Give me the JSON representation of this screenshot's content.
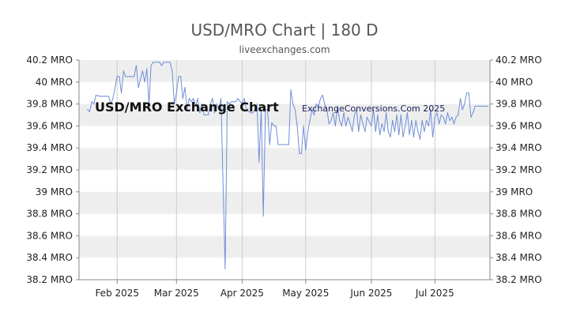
{
  "header": {
    "title": "USD/MRO Chart | 180 D",
    "subtitle": "liveexchanges.com"
  },
  "watermarks": {
    "left": "USD/MRO Exchange Chart",
    "right": "ExchangeConversions.Com 2025"
  },
  "colors": {
    "line": "#6f8fd8",
    "band": "#eeeeee",
    "grid": "#cccccc",
    "axis": "#888888"
  },
  "chart_data": {
    "type": "line",
    "title": "USD/MRO Chart | 180 D",
    "xlabel": "",
    "ylabel": "",
    "ylim": [
      38.2,
      40.2
    ],
    "y_ticks": [
      {
        "value": 40.2,
        "label": "40.2 MRO"
      },
      {
        "value": 40.0,
        "label": "40 MRO"
      },
      {
        "value": 39.8,
        "label": "39.8 MRO"
      },
      {
        "value": 39.6,
        "label": "39.6 MRO"
      },
      {
        "value": 39.4,
        "label": "39.4 MRO"
      },
      {
        "value": 39.2,
        "label": "39.2 MRO"
      },
      {
        "value": 39.0,
        "label": "39 MRO"
      },
      {
        "value": 38.8,
        "label": "38.8 MRO"
      },
      {
        "value": 38.6,
        "label": "38.6 MRO"
      },
      {
        "value": 38.4,
        "label": "38.4 MRO"
      },
      {
        "value": 38.2,
        "label": "38.2 MRO"
      }
    ],
    "x_range": [
      "2025-01-14",
      "2025-07-27"
    ],
    "x_ticks": [
      {
        "date": "2025-02-01",
        "label": "Feb 2025"
      },
      {
        "date": "2025-03-01",
        "label": "Mar 2025"
      },
      {
        "date": "2025-04-01",
        "label": "Apr 2025"
      },
      {
        "date": "2025-05-01",
        "label": "May 2025"
      },
      {
        "date": "2025-06-01",
        "label": "Jun 2025"
      },
      {
        "date": "2025-07-01",
        "label": "Jul 2025"
      }
    ],
    "grid": true,
    "legend": "none",
    "series": [
      {
        "values": [
          [
            "2025-01-18",
            39.75
          ],
          [
            "2025-01-19",
            39.73
          ],
          [
            "2025-01-20",
            39.82
          ],
          [
            "2025-01-21",
            39.8
          ],
          [
            "2025-01-22",
            39.88
          ],
          [
            "2025-01-24",
            39.87
          ],
          [
            "2025-01-26",
            39.87
          ],
          [
            "2025-01-28",
            39.87
          ],
          [
            "2025-01-29",
            39.8
          ],
          [
            "2025-01-30",
            39.85
          ],
          [
            "2025-02-01",
            40.05
          ],
          [
            "2025-02-02",
            40.05
          ],
          [
            "2025-02-03",
            39.9
          ],
          [
            "2025-02-04",
            40.1
          ],
          [
            "2025-02-05",
            40.05
          ],
          [
            "2025-02-07",
            40.05
          ],
          [
            "2025-02-09",
            40.05
          ],
          [
            "2025-02-10",
            40.15
          ],
          [
            "2025-02-11",
            39.95
          ],
          [
            "2025-02-13",
            40.1
          ],
          [
            "2025-02-14",
            40.0
          ],
          [
            "2025-02-15",
            40.12
          ],
          [
            "2025-02-16",
            39.8
          ],
          [
            "2025-02-17",
            40.15
          ],
          [
            "2025-02-18",
            40.18
          ],
          [
            "2025-02-19",
            40.18
          ],
          [
            "2025-02-21",
            40.18
          ],
          [
            "2025-02-22",
            40.15
          ],
          [
            "2025-02-23",
            40.18
          ],
          [
            "2025-02-24",
            40.18
          ],
          [
            "2025-02-26",
            40.18
          ],
          [
            "2025-02-27",
            40.1
          ],
          [
            "2025-02-28",
            39.8
          ],
          [
            "2025-03-01",
            39.9
          ],
          [
            "2025-03-02",
            40.05
          ],
          [
            "2025-03-03",
            40.05
          ],
          [
            "2025-03-04",
            39.85
          ],
          [
            "2025-03-05",
            39.95
          ],
          [
            "2025-03-06",
            39.75
          ],
          [
            "2025-03-07",
            39.85
          ],
          [
            "2025-03-08",
            39.82
          ],
          [
            "2025-03-09",
            39.85
          ],
          [
            "2025-03-10",
            39.78
          ],
          [
            "2025-03-11",
            39.85
          ],
          [
            "2025-03-12",
            39.72
          ],
          [
            "2025-03-13",
            39.8
          ],
          [
            "2025-03-14",
            39.7
          ],
          [
            "2025-03-16",
            39.7
          ],
          [
            "2025-03-17",
            39.8
          ],
          [
            "2025-03-18",
            39.85
          ],
          [
            "2025-03-19",
            39.72
          ],
          [
            "2025-03-20",
            39.8
          ],
          [
            "2025-03-21",
            39.75
          ],
          [
            "2025-03-22",
            39.85
          ],
          [
            "2025-03-24",
            38.3
          ],
          [
            "2025-03-25",
            39.82
          ],
          [
            "2025-03-26",
            39.8
          ],
          [
            "2025-03-27",
            39.82
          ],
          [
            "2025-03-29",
            39.82
          ],
          [
            "2025-03-30",
            39.85
          ],
          [
            "2025-04-01",
            39.8
          ],
          [
            "2025-04-02",
            39.85
          ],
          [
            "2025-04-03",
            39.75
          ],
          [
            "2025-04-05",
            39.72
          ],
          [
            "2025-04-06",
            39.72
          ],
          [
            "2025-04-07",
            39.75
          ],
          [
            "2025-04-08",
            39.8
          ],
          [
            "2025-04-09",
            39.27
          ],
          [
            "2025-04-10",
            39.75
          ],
          [
            "2025-04-11",
            38.78
          ],
          [
            "2025-04-12",
            39.75
          ],
          [
            "2025-04-13",
            39.75
          ],
          [
            "2025-04-14",
            39.43
          ],
          [
            "2025-04-15",
            39.63
          ],
          [
            "2025-04-16",
            39.6
          ],
          [
            "2025-04-17",
            39.6
          ],
          [
            "2025-04-18",
            39.43
          ],
          [
            "2025-04-19",
            39.43
          ],
          [
            "2025-04-21",
            39.43
          ],
          [
            "2025-04-23",
            39.43
          ],
          [
            "2025-04-24",
            39.93
          ],
          [
            "2025-04-25",
            39.8
          ],
          [
            "2025-04-26",
            39.75
          ],
          [
            "2025-04-27",
            39.6
          ],
          [
            "2025-04-28",
            39.35
          ],
          [
            "2025-04-29",
            39.35
          ],
          [
            "2025-04-30",
            39.6
          ],
          [
            "2025-05-01",
            39.38
          ],
          [
            "2025-05-02",
            39.55
          ],
          [
            "2025-05-03",
            39.65
          ],
          [
            "2025-05-04",
            39.75
          ],
          [
            "2025-05-05",
            39.7
          ],
          [
            "2025-05-06",
            39.8
          ],
          [
            "2025-05-07",
            39.78
          ],
          [
            "2025-05-08",
            39.85
          ],
          [
            "2025-05-09",
            39.88
          ],
          [
            "2025-05-10",
            39.8
          ],
          [
            "2025-05-11",
            39.75
          ],
          [
            "2025-05-12",
            39.62
          ],
          [
            "2025-05-13",
            39.65
          ],
          [
            "2025-05-14",
            39.72
          ],
          [
            "2025-05-15",
            39.6
          ],
          [
            "2025-05-16",
            39.78
          ],
          [
            "2025-05-17",
            39.65
          ],
          [
            "2025-05-18",
            39.6
          ],
          [
            "2025-05-19",
            39.72
          ],
          [
            "2025-05-20",
            39.6
          ],
          [
            "2025-05-21",
            39.68
          ],
          [
            "2025-05-22",
            39.62
          ],
          [
            "2025-05-23",
            39.55
          ],
          [
            "2025-05-24",
            39.7
          ],
          [
            "2025-05-25",
            39.75
          ],
          [
            "2025-05-26",
            39.55
          ],
          [
            "2025-05-27",
            39.7
          ],
          [
            "2025-05-28",
            39.62
          ],
          [
            "2025-05-29",
            39.55
          ],
          [
            "2025-05-30",
            39.68
          ],
          [
            "2025-06-01",
            39.6
          ],
          [
            "2025-06-02",
            39.75
          ],
          [
            "2025-06-03",
            39.55
          ],
          [
            "2025-06-04",
            39.7
          ],
          [
            "2025-06-05",
            39.52
          ],
          [
            "2025-06-06",
            39.62
          ],
          [
            "2025-06-07",
            39.55
          ],
          [
            "2025-06-08",
            39.72
          ],
          [
            "2025-06-09",
            39.55
          ],
          [
            "2025-06-10",
            39.5
          ],
          [
            "2025-06-11",
            39.65
          ],
          [
            "2025-06-12",
            39.55
          ],
          [
            "2025-06-13",
            39.7
          ],
          [
            "2025-06-14",
            39.52
          ],
          [
            "2025-06-15",
            39.7
          ],
          [
            "2025-06-16",
            39.5
          ],
          [
            "2025-06-17",
            39.6
          ],
          [
            "2025-06-18",
            39.72
          ],
          [
            "2025-06-19",
            39.52
          ],
          [
            "2025-06-20",
            39.65
          ],
          [
            "2025-06-21",
            39.5
          ],
          [
            "2025-06-22",
            39.65
          ],
          [
            "2025-06-23",
            39.55
          ],
          [
            "2025-06-24",
            39.48
          ],
          [
            "2025-06-25",
            39.65
          ],
          [
            "2025-06-26",
            39.55
          ],
          [
            "2025-06-27",
            39.65
          ],
          [
            "2025-06-28",
            39.6
          ],
          [
            "2025-06-29",
            39.75
          ],
          [
            "2025-06-30",
            39.5
          ],
          [
            "2025-07-01",
            39.68
          ],
          [
            "2025-07-02",
            39.72
          ],
          [
            "2025-07-03",
            39.62
          ],
          [
            "2025-07-04",
            39.7
          ],
          [
            "2025-07-05",
            39.68
          ],
          [
            "2025-07-06",
            39.62
          ],
          [
            "2025-07-07",
            39.72
          ],
          [
            "2025-07-08",
            39.65
          ],
          [
            "2025-07-09",
            39.68
          ],
          [
            "2025-07-10",
            39.62
          ],
          [
            "2025-07-11",
            39.68
          ],
          [
            "2025-07-12",
            39.7
          ],
          [
            "2025-07-13",
            39.85
          ],
          [
            "2025-07-14",
            39.75
          ],
          [
            "2025-07-15",
            39.8
          ],
          [
            "2025-07-16",
            39.9
          ],
          [
            "2025-07-17",
            39.9
          ],
          [
            "2025-07-18",
            39.68
          ],
          [
            "2025-07-19",
            39.72
          ],
          [
            "2025-07-20",
            39.78
          ],
          [
            "2025-07-22",
            39.78
          ],
          [
            "2025-07-24",
            39.78
          ],
          [
            "2025-07-26",
            39.78
          ]
        ]
      }
    ]
  }
}
